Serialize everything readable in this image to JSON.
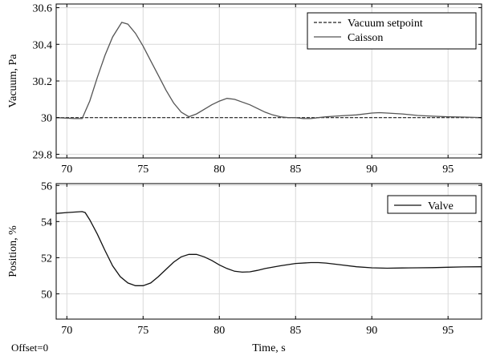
{
  "footer_note": "Offset=0",
  "chart_data": [
    {
      "type": "line",
      "ylabel": "Vacuum, Pa",
      "xlabel": "",
      "xlim": [
        69.3,
        97.2
      ],
      "ylim": [
        29.78,
        30.62
      ],
      "xticks": [
        70,
        75,
        80,
        85,
        90,
        95
      ],
      "yticks": [
        29.8,
        30,
        30.2,
        30.4,
        30.6
      ],
      "ytick_labels": [
        "29.8",
        "30",
        "30.2",
        "30.4",
        "30.6"
      ],
      "grid": true,
      "legend_position": "top-right",
      "series": [
        {
          "name": "Vacuum setpoint",
          "color": "#222222",
          "dash": "dashed",
          "x": [
            69.3,
            97.2
          ],
          "y": [
            30.0,
            30.0
          ]
        },
        {
          "name": "Caisson",
          "color": "#555555",
          "dash": "solid",
          "x": [
            69.3,
            70.5,
            71.0,
            71.5,
            72.0,
            72.5,
            73.0,
            73.6,
            74.0,
            74.5,
            75.0,
            75.5,
            76.0,
            76.5,
            77.0,
            77.5,
            78.0,
            78.5,
            79.0,
            79.5,
            80.0,
            80.5,
            81.0,
            81.5,
            82.0,
            82.5,
            83.0,
            83.5,
            84.0,
            84.5,
            85.0,
            85.5,
            86.0,
            86.5,
            87.0,
            88.0,
            89.0,
            90.0,
            90.5,
            91.0,
            92.0,
            93.0,
            94.0,
            95.0,
            96.0,
            97.2
          ],
          "y": [
            30.0,
            29.995,
            29.995,
            30.09,
            30.22,
            30.34,
            30.44,
            30.52,
            30.51,
            30.46,
            30.39,
            30.31,
            30.23,
            30.15,
            30.08,
            30.03,
            30.005,
            30.02,
            30.045,
            30.07,
            30.09,
            30.105,
            30.1,
            30.085,
            30.07,
            30.05,
            30.03,
            30.015,
            30.005,
            30.0,
            30.0,
            29.995,
            29.995,
            30.0,
            30.005,
            30.01,
            30.015,
            30.025,
            30.027,
            30.025,
            30.02,
            30.012,
            30.008,
            30.005,
            30.003,
            30.0
          ]
        }
      ]
    },
    {
      "type": "line",
      "ylabel": "Position, %",
      "xlabel": "Time, s",
      "xlim": [
        69.3,
        97.2
      ],
      "ylim": [
        48.6,
        56.1
      ],
      "xticks": [
        70,
        75,
        80,
        85,
        90,
        95
      ],
      "yticks": [
        50,
        52,
        54,
        56
      ],
      "ytick_labels": [
        "50",
        "52",
        "54",
        "56"
      ],
      "grid": true,
      "legend_position": "top-right",
      "series": [
        {
          "name": "Valve",
          "color": "#111111",
          "dash": "solid",
          "x": [
            69.3,
            70.0,
            71.0,
            71.2,
            71.5,
            72.0,
            72.5,
            73.0,
            73.5,
            74.0,
            74.5,
            75.0,
            75.5,
            76.0,
            76.5,
            77.0,
            77.5,
            78.0,
            78.5,
            79.0,
            79.5,
            80.0,
            80.5,
            81.0,
            81.5,
            82.0,
            82.5,
            83.0,
            84.0,
            85.0,
            86.0,
            86.5,
            87.0,
            88.0,
            89.0,
            90.0,
            91.0,
            92.0,
            93.0,
            94.0,
            95.0,
            96.0,
            97.2
          ],
          "y": [
            54.45,
            54.5,
            54.55,
            54.5,
            54.1,
            53.3,
            52.4,
            51.55,
            50.95,
            50.6,
            50.45,
            50.45,
            50.6,
            50.95,
            51.35,
            51.75,
            52.05,
            52.18,
            52.18,
            52.05,
            51.85,
            51.6,
            51.4,
            51.25,
            51.2,
            51.22,
            51.3,
            51.4,
            51.55,
            51.68,
            51.73,
            51.73,
            51.7,
            51.6,
            51.5,
            51.44,
            51.42,
            51.43,
            51.44,
            51.45,
            51.47,
            51.49,
            51.5
          ]
        }
      ]
    }
  ]
}
